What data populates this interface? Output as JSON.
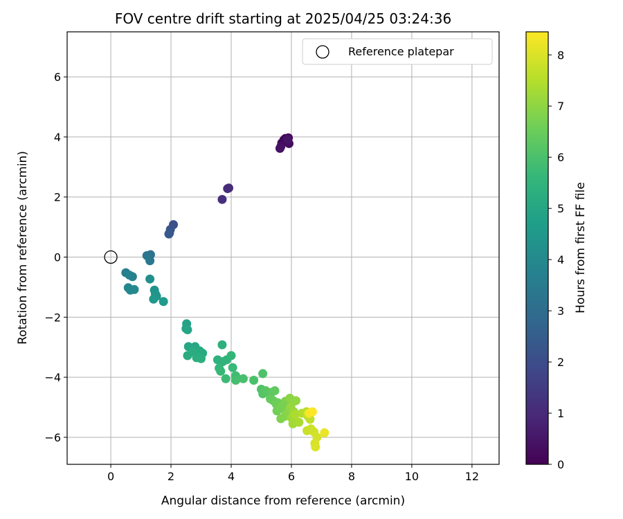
{
  "chart_data": {
    "type": "scatter",
    "title": "FOV centre drift starting at 2025/04/25 03:24:36",
    "xlabel": "Angular distance from reference (arcmin)",
    "ylabel": "Rotation from reference (arcmin)",
    "xlim": [
      -1.45,
      12.9
    ],
    "ylim": [
      -6.9,
      7.5
    ],
    "xticks": [
      0,
      2,
      4,
      6,
      8,
      10,
      12
    ],
    "yticks": [
      -6,
      -4,
      -2,
      0,
      2,
      4,
      6
    ],
    "grid": true,
    "legend": {
      "placement": "top-right",
      "entries": [
        "Reference platepar"
      ]
    },
    "reference_point": {
      "x": 0,
      "y": 0
    },
    "colorbar": {
      "label": "Hours from first FF file",
      "range": [
        0,
        8.45
      ],
      "ticks": [
        0,
        1,
        2,
        3,
        4,
        5,
        6,
        7,
        8
      ],
      "colormap": [
        "#440154",
        "#482878",
        "#3e4989",
        "#31688e",
        "#26828e",
        "#1f9e89",
        "#35b779",
        "#6ece58",
        "#b5de2b",
        "#fde725"
      ]
    },
    "series": [
      {
        "points": [
          [
            5.8,
            3.95,
            0.05
          ],
          [
            5.9,
            3.97,
            0.1
          ],
          [
            5.75,
            3.9,
            0.15
          ],
          [
            5.68,
            3.8,
            0.2
          ],
          [
            5.85,
            3.88,
            0.25
          ],
          [
            5.92,
            3.78,
            0.3
          ],
          [
            5.65,
            3.68,
            0.35
          ],
          [
            5.62,
            3.62,
            0.4
          ],
          [
            5.88,
            3.92,
            0.45
          ],
          [
            3.92,
            2.3,
            1.0
          ],
          [
            3.88,
            2.28,
            1.05
          ],
          [
            3.7,
            1.92,
            1.15
          ],
          [
            2.08,
            1.08,
            2.1
          ],
          [
            1.98,
            0.92,
            2.2
          ],
          [
            1.95,
            0.8,
            2.3
          ],
          [
            1.93,
            0.77,
            2.35
          ],
          [
            1.32,
            0.08,
            3.2
          ],
          [
            1.2,
            0.05,
            3.3
          ],
          [
            1.3,
            -0.12,
            3.4
          ],
          [
            0.5,
            -0.52,
            3.6
          ],
          [
            0.62,
            -0.6,
            3.7
          ],
          [
            0.72,
            -0.65,
            3.75
          ],
          [
            0.58,
            -1.02,
            3.9
          ],
          [
            0.65,
            -1.1,
            3.95
          ],
          [
            0.78,
            -1.08,
            4.0
          ],
          [
            1.3,
            -0.73,
            4.2
          ],
          [
            1.45,
            -1.1,
            4.3
          ],
          [
            1.48,
            -1.22,
            4.35
          ],
          [
            1.52,
            -1.3,
            4.4
          ],
          [
            1.42,
            -1.4,
            4.5
          ],
          [
            1.75,
            -1.48,
            4.6
          ],
          [
            2.52,
            -2.22,
            4.85
          ],
          [
            2.5,
            -2.38,
            4.9
          ],
          [
            2.55,
            -2.42,
            4.95
          ],
          [
            2.58,
            -2.98,
            5.0
          ],
          [
            2.8,
            -2.98,
            5.05
          ],
          [
            2.95,
            -3.12,
            5.1
          ],
          [
            3.05,
            -3.2,
            5.15
          ],
          [
            2.55,
            -3.28,
            5.2
          ],
          [
            2.72,
            -3.15,
            5.2
          ],
          [
            2.85,
            -3.35,
            5.25
          ],
          [
            3.0,
            -3.38,
            5.3
          ],
          [
            3.7,
            -2.92,
            5.35
          ],
          [
            3.55,
            -3.42,
            5.4
          ],
          [
            3.72,
            -3.48,
            5.45
          ],
          [
            3.85,
            -3.42,
            5.5
          ],
          [
            4.0,
            -3.28,
            5.55
          ],
          [
            3.6,
            -3.7,
            5.6
          ],
          [
            3.65,
            -3.8,
            5.65
          ],
          [
            4.05,
            -3.68,
            5.7
          ],
          [
            3.82,
            -4.05,
            5.75
          ],
          [
            4.15,
            -3.95,
            5.8
          ],
          [
            4.2,
            -4.05,
            5.85
          ],
          [
            4.15,
            -4.1,
            5.9
          ],
          [
            4.4,
            -4.05,
            5.95
          ],
          [
            4.75,
            -4.1,
            6.0
          ],
          [
            5.05,
            -3.88,
            6.05
          ],
          [
            5.0,
            -4.4,
            6.1
          ],
          [
            5.05,
            -4.55,
            6.15
          ],
          [
            5.2,
            -4.5,
            6.2
          ],
          [
            5.15,
            -4.45,
            6.25
          ],
          [
            5.35,
            -4.5,
            6.3
          ],
          [
            5.45,
            -4.45,
            6.35
          ],
          [
            5.3,
            -4.72,
            6.4
          ],
          [
            5.4,
            -4.78,
            6.45
          ],
          [
            5.55,
            -4.85,
            6.5
          ],
          [
            5.5,
            -4.9,
            6.55
          ],
          [
            5.52,
            -5.12,
            6.6
          ],
          [
            5.62,
            -5.05,
            6.65
          ],
          [
            5.72,
            -4.92,
            6.7
          ],
          [
            5.8,
            -4.8,
            6.75
          ],
          [
            5.65,
            -5.38,
            6.8
          ],
          [
            5.78,
            -5.3,
            6.85
          ],
          [
            5.88,
            -5.15,
            6.9
          ],
          [
            5.95,
            -4.7,
            6.95
          ],
          [
            6.05,
            -4.82,
            7.0
          ],
          [
            6.15,
            -4.78,
            7.05
          ],
          [
            5.98,
            -5.0,
            7.1
          ],
          [
            6.08,
            -5.15,
            7.15
          ],
          [
            6.0,
            -5.35,
            7.2
          ],
          [
            6.05,
            -5.55,
            7.25
          ],
          [
            6.18,
            -5.48,
            7.3
          ],
          [
            6.25,
            -5.5,
            7.35
          ],
          [
            6.12,
            -5.25,
            7.4
          ],
          [
            6.35,
            -5.2,
            7.45
          ],
          [
            6.5,
            -5.15,
            7.55
          ],
          [
            6.55,
            -5.3,
            7.6
          ],
          [
            6.62,
            -5.4,
            7.65
          ],
          [
            6.52,
            -5.78,
            7.75
          ],
          [
            6.65,
            -5.72,
            7.8
          ],
          [
            6.75,
            -5.82,
            7.85
          ],
          [
            6.85,
            -6.0,
            7.9
          ],
          [
            6.78,
            -6.2,
            7.95
          ],
          [
            6.8,
            -6.32,
            8.0
          ],
          [
            7.1,
            -5.85,
            8.2
          ],
          [
            6.58,
            -5.2,
            8.35
          ],
          [
            6.7,
            -5.15,
            8.45
          ]
        ]
      }
    ]
  }
}
